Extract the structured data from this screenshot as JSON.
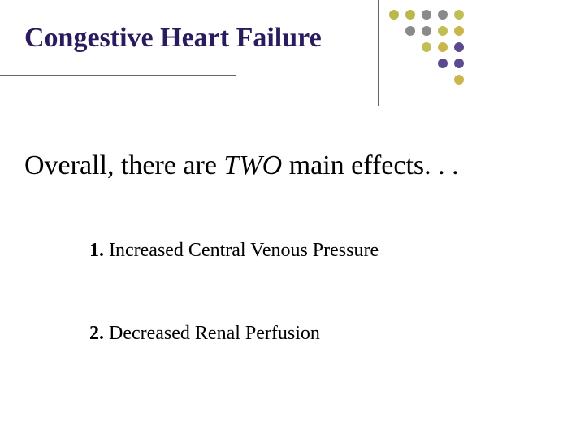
{
  "title": "Congestive Heart Failure",
  "separator": {
    "h_width": 290,
    "v_height": 130,
    "color": "#666666"
  },
  "dots": {
    "colors_by_diagonal": [
      "#b9b84a",
      "#b9b84a",
      "#8a8a8a",
      "#8a8a8a",
      "#c0bf54",
      "#c9b64d",
      "#5b4a8e",
      "#5b4a8e",
      "#c9b64d"
    ],
    "cell": 20,
    "radius": 6
  },
  "subtitle_pre": "Overall, there are ",
  "subtitle_emph": "TWO",
  "subtitle_post": " main effects. . .",
  "items": [
    {
      "num": "1.",
      "text": "Increased Central Venous Pressure"
    },
    {
      "num": "2.",
      "text": " Decreased Renal Perfusion"
    }
  ],
  "colors": {
    "title": "#2a1a5e",
    "body": "#000000",
    "background": "#ffffff"
  },
  "fonts": {
    "title_size": 34,
    "subtitle_size": 34,
    "item_size": 24
  }
}
